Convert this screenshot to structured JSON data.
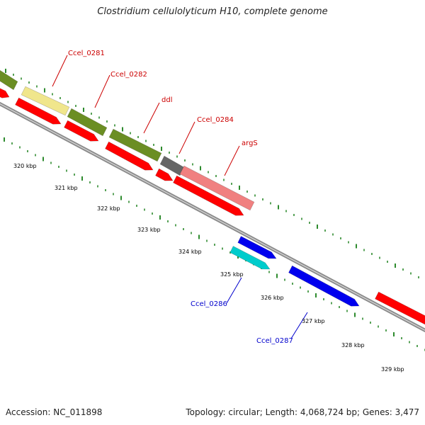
{
  "title": "Clostridium cellulolyticum H10, complete genome",
  "footer": {
    "accession": "Accession: NC_011898",
    "summary": "Topology: circular; Length: 4,068,724 bp; Genes: 3,477"
  },
  "colors": {
    "backbone": "#8c8c8c",
    "tick": "#2e8b2e",
    "forward_cds": "#ff0000",
    "reverse_cds": "#0000ee",
    "gene_green": "#6b8e23",
    "gene_yellow": "#f0e68c",
    "gene_gray": "#666666",
    "gene_salmon": "#f08080",
    "gene_cyan": "#00cccc",
    "label_red": "#cc0000",
    "label_blue": "#0000cc"
  },
  "axis": {
    "kbp_labels": [
      "320 kbp",
      "321 kbp",
      "322 kbp",
      "323 kbp",
      "324 kbp",
      "325 kbp",
      "326 kbp",
      "327 kbp",
      "328 kbp",
      "329 kbp"
    ]
  },
  "gene_labels": [
    {
      "name": "Ccel_0281",
      "color": "red"
    },
    {
      "name": "Ccel_0282",
      "color": "red"
    },
    {
      "name": "ddl",
      "color": "red"
    },
    {
      "name": "Ccel_0284",
      "color": "red"
    },
    {
      "name": "argS",
      "color": "red"
    },
    {
      "name": "Ccel_0286",
      "color": "blue"
    },
    {
      "name": "Ccel_0287",
      "color": "blue"
    }
  ]
}
